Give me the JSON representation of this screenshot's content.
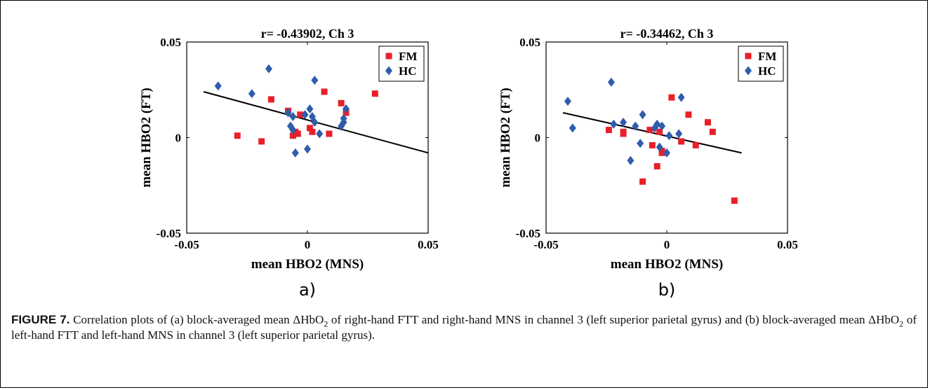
{
  "chart_data": [
    {
      "type": "scatter",
      "title": "r= -0.43902, Ch 3",
      "xlabel": "mean HBO2 (MNS)",
      "ylabel": "mean HBO2 (FT)",
      "xlim": [
        -0.05,
        0.05
      ],
      "ylim": [
        -0.05,
        0.05
      ],
      "xticks": [
        "-0.05",
        "0",
        "0.05"
      ],
      "yticks": [
        "-0.05",
        "0",
        "0.05"
      ],
      "legend_position": "top-right",
      "panel_label": "a)",
      "series": [
        {
          "name": "FM",
          "color": "#e8202a",
          "marker": "square",
          "points": [
            [
              -0.029,
              0.001
            ],
            [
              -0.019,
              -0.002
            ],
            [
              -0.015,
              0.02
            ],
            [
              -0.008,
              0.014
            ],
            [
              -0.006,
              0.001
            ],
            [
              -0.005,
              0.003
            ],
            [
              -0.004,
              0.002
            ],
            [
              -0.003,
              0.012
            ],
            [
              0.001,
              0.005
            ],
            [
              0.002,
              0.003
            ],
            [
              0.007,
              0.024
            ],
            [
              0.009,
              0.002
            ],
            [
              0.014,
              0.018
            ],
            [
              0.016,
              0.013
            ],
            [
              0.028,
              0.023
            ]
          ]
        },
        {
          "name": "HC",
          "color": "#2f5cab",
          "marker": "diamond",
          "points": [
            [
              -0.037,
              0.027
            ],
            [
              -0.023,
              0.023
            ],
            [
              -0.016,
              0.036
            ],
            [
              -0.008,
              0.013
            ],
            [
              -0.007,
              0.006
            ],
            [
              -0.006,
              0.004
            ],
            [
              -0.006,
              0.011
            ],
            [
              -0.005,
              -0.008
            ],
            [
              -0.001,
              0.012
            ],
            [
              0.0,
              -0.006
            ],
            [
              0.001,
              0.015
            ],
            [
              0.002,
              0.011
            ],
            [
              0.003,
              0.03
            ],
            [
              0.003,
              0.008
            ],
            [
              0.005,
              0.002
            ],
            [
              0.014,
              0.006
            ],
            [
              0.015,
              0.008
            ],
            [
              0.015,
              0.01
            ],
            [
              0.016,
              0.015
            ]
          ]
        }
      ],
      "fit_line": {
        "x": [
          -0.043,
          0.05
        ],
        "y": [
          0.024,
          -0.008
        ]
      }
    },
    {
      "type": "scatter",
      "title": "r= -0.34462, Ch 3",
      "xlabel": "mean HBO2 (MNS)",
      "ylabel": "mean HBO2 (FT)",
      "xlim": [
        -0.05,
        0.05
      ],
      "ylim": [
        -0.05,
        0.05
      ],
      "xticks": [
        "-0.05",
        "0",
        "0.05"
      ],
      "yticks": [
        "-0.05",
        "0",
        "0.05"
      ],
      "legend_position": "top-right",
      "panel_label": "b)",
      "series": [
        {
          "name": "FM",
          "color": "#e8202a",
          "marker": "square",
          "points": [
            [
              -0.024,
              0.004
            ],
            [
              -0.018,
              0.002
            ],
            [
              -0.018,
              0.003
            ],
            [
              -0.01,
              -0.023
            ],
            [
              -0.007,
              0.004
            ],
            [
              -0.006,
              -0.004
            ],
            [
              -0.004,
              -0.015
            ],
            [
              -0.003,
              0.003
            ],
            [
              -0.002,
              -0.007
            ],
            [
              -0.002,
              -0.008
            ],
            [
              0.002,
              0.021
            ],
            [
              0.006,
              -0.002
            ],
            [
              0.009,
              0.012
            ],
            [
              0.012,
              -0.004
            ],
            [
              0.017,
              0.008
            ],
            [
              0.019,
              0.003
            ],
            [
              0.028,
              -0.033
            ]
          ]
        },
        {
          "name": "HC",
          "color": "#2f5cab",
          "marker": "diamond",
          "points": [
            [
              -0.041,
              0.019
            ],
            [
              -0.039,
              0.005
            ],
            [
              -0.023,
              0.029
            ],
            [
              -0.022,
              0.007
            ],
            [
              -0.018,
              0.008
            ],
            [
              -0.015,
              -0.012
            ],
            [
              -0.013,
              0.006
            ],
            [
              -0.011,
              -0.003
            ],
            [
              -0.01,
              0.012
            ],
            [
              -0.005,
              0.005
            ],
            [
              -0.004,
              0.007
            ],
            [
              -0.003,
              -0.005
            ],
            [
              -0.002,
              0.006
            ],
            [
              0.0,
              -0.008
            ],
            [
              0.001,
              0.001
            ],
            [
              0.005,
              0.002
            ],
            [
              0.006,
              0.021
            ]
          ]
        }
      ],
      "fit_line": {
        "x": [
          -0.043,
          0.031
        ],
        "y": [
          0.013,
          -0.008
        ]
      }
    }
  ],
  "caption": {
    "lead": "FIGURE 7.",
    "p1": " Correlation plots of (a) block-averaged mean ΔHbO",
    "sub1": "2",
    "p2": " of right-hand FTT and right-hand MNS in channel 3 (left superior parietal gyrus) and (b) block-averaged mean ΔHbO",
    "sub2": "2",
    "p3": " of left-hand FTT and left-hand MNS in channel 3 (left superior parietal gyrus)."
  }
}
